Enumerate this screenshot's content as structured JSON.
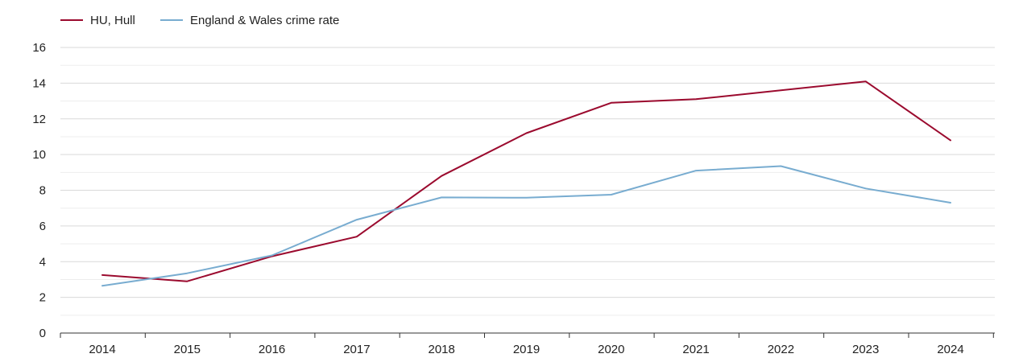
{
  "chart_data": {
    "type": "line",
    "title": "",
    "xlabel": "",
    "ylabel": "",
    "x": [
      "2014",
      "2015",
      "2016",
      "2017",
      "2018",
      "2019",
      "2020",
      "2021",
      "2022",
      "2023",
      "2024"
    ],
    "ylim": [
      0,
      16
    ],
    "yticks": [
      "0",
      "2",
      "4",
      "6",
      "8",
      "10",
      "12",
      "14",
      "16"
    ],
    "grid": true,
    "legend_position": "top-left",
    "series": [
      {
        "name": "HU, Hull",
        "color": "#9b0a2e",
        "values": [
          3.25,
          2.9,
          4.3,
          5.4,
          8.8,
          11.2,
          12.9,
          13.1,
          13.6,
          14.1,
          10.8
        ]
      },
      {
        "name": "England & Wales crime rate",
        "color": "#78acd0",
        "values": [
          2.65,
          3.35,
          4.35,
          6.35,
          7.6,
          7.58,
          7.75,
          9.1,
          9.35,
          8.1,
          7.3
        ]
      }
    ]
  }
}
